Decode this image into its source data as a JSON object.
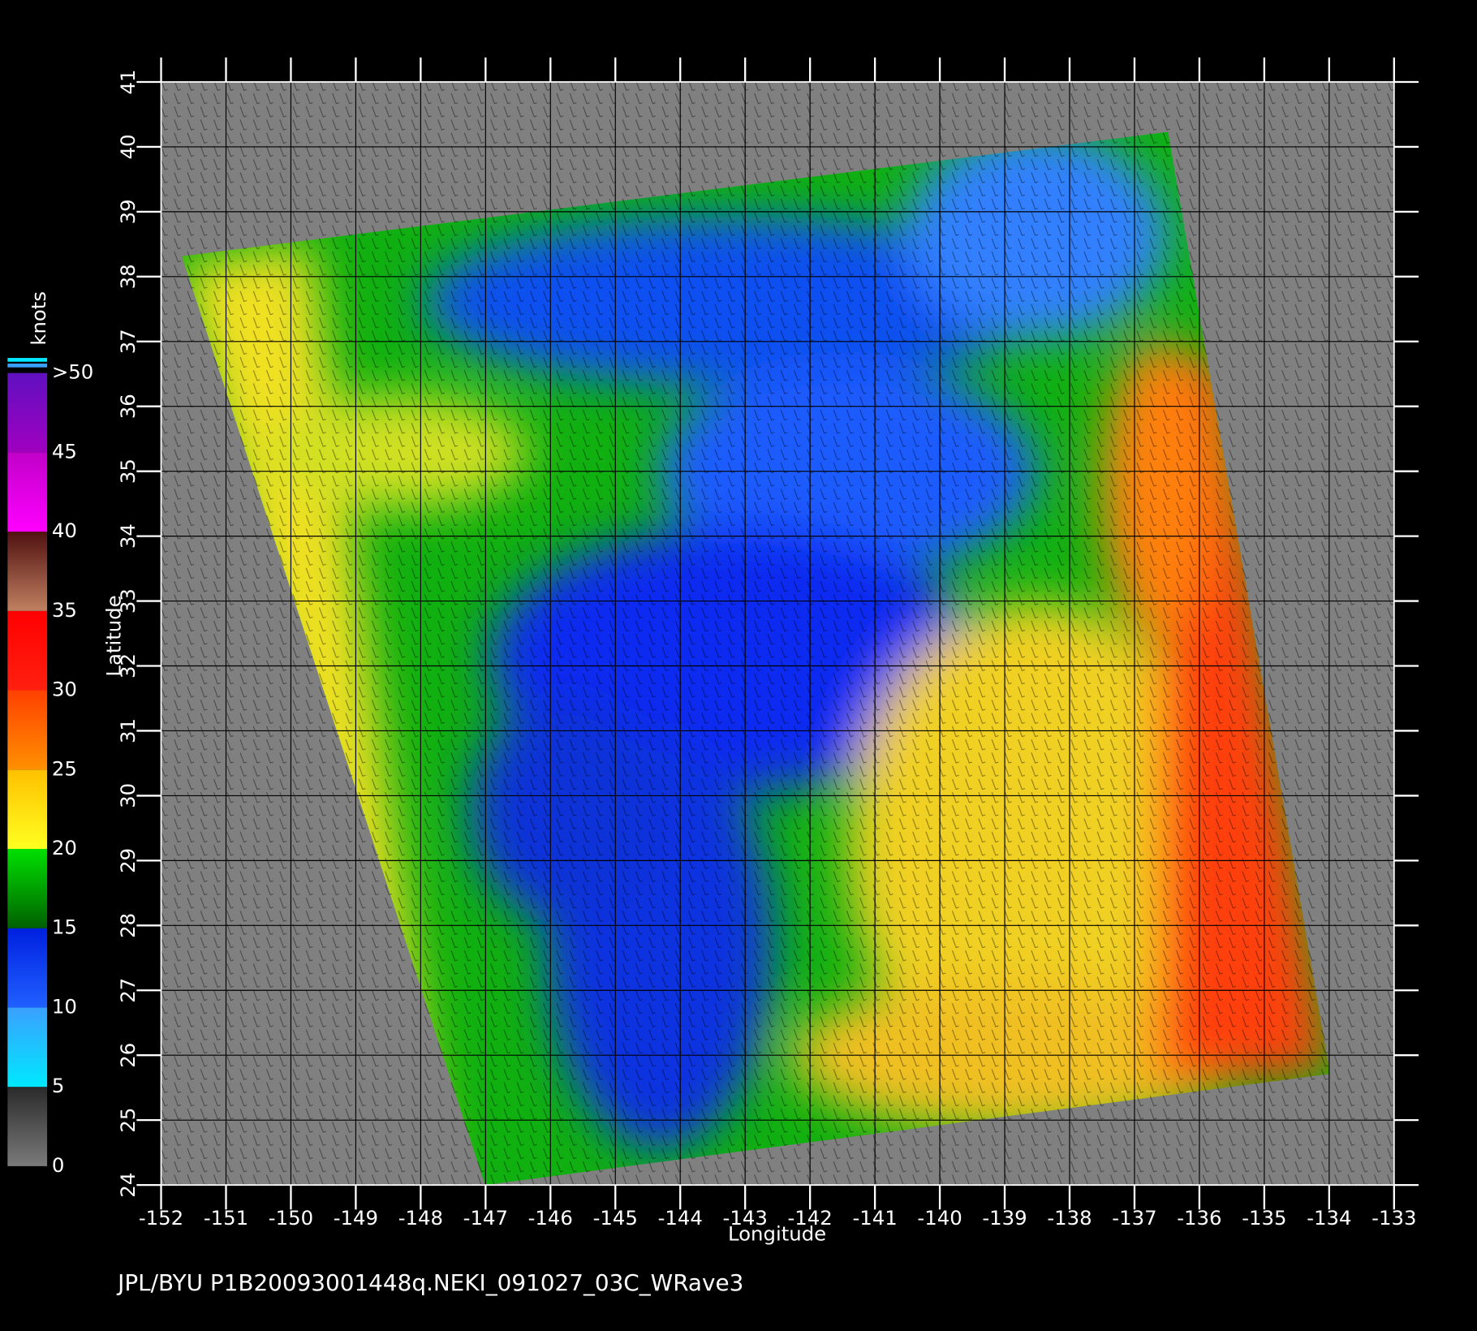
{
  "map": {
    "xlim": [
      -152,
      -133
    ],
    "ylim": [
      24,
      41
    ],
    "xticks": [
      -152,
      -151,
      -150,
      -149,
      -148,
      -147,
      -146,
      -145,
      -144,
      -143,
      -142,
      -141,
      -140,
      -139,
      -138,
      -137,
      -136,
      -135,
      -134,
      -133
    ],
    "yticks": [
      24,
      25,
      26,
      27,
      28,
      29,
      30,
      31,
      32,
      33,
      34,
      35,
      36,
      37,
      38,
      39,
      40,
      41
    ],
    "xlabel": "Longitude",
    "ylabel": "Latitude",
    "grid": true,
    "background": "#808080"
  },
  "colorbar": {
    "label": "knots",
    "ticks": [
      0,
      5,
      10,
      15,
      20,
      25,
      30,
      35,
      40,
      45,
      {
        "value": 50,
        "label": ">50"
      }
    ],
    "colors": [
      [
        "#7a7a7a",
        "#2a2a2a"
      ],
      [
        "#00e8ff",
        "#3aa0ff"
      ],
      [
        "#2060ff",
        "#0020e0"
      ],
      [
        "#006000",
        "#00e000"
      ],
      [
        "#ffff20",
        "#ffc000"
      ],
      [
        "#ff9000",
        "#ff4000"
      ],
      [
        "#ff2010",
        "#ff0000"
      ],
      [
        "#c08060",
        "#501010"
      ],
      [
        "#ff00ff",
        "#c000c8"
      ],
      [
        "#a000c0",
        "#6010c0"
      ]
    ]
  },
  "footer": "JPL/BYU  P1B20093001448q.NEKI_091027_03C_WRave3"
}
